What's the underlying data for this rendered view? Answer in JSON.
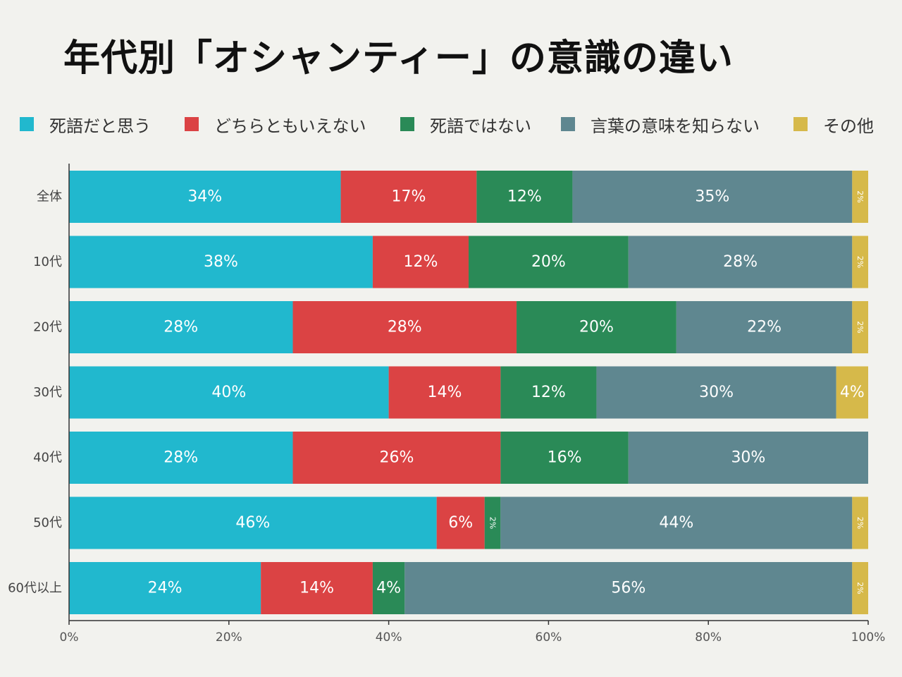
{
  "title": "年代別「オシャンティー」の意識の違い",
  "chart_data": {
    "type": "bar",
    "orientation": "horizontal",
    "stacked": true,
    "title": "年代別「オシャンティー」の意識の違い",
    "categories": [
      "全体",
      "10代",
      "20代",
      "30代",
      "40代",
      "50代",
      "60代以上"
    ],
    "series": [
      {
        "name": "死語だと思う",
        "color": "#21b8ce",
        "values": [
          34,
          38,
          28,
          40,
          28,
          46,
          24
        ]
      },
      {
        "name": "どちらともいえない",
        "color": "#db4344",
        "values": [
          17,
          12,
          28,
          14,
          26,
          6,
          14
        ]
      },
      {
        "name": "死語ではない",
        "color": "#2a8a57",
        "values": [
          12,
          20,
          20,
          12,
          16,
          2,
          4
        ]
      },
      {
        "name": "言葉の意味を知らない",
        "color": "#5f8790",
        "values": [
          35,
          28,
          22,
          30,
          30,
          44,
          56
        ]
      },
      {
        "name": "その他",
        "color": "#d6b94a",
        "values": [
          2,
          2,
          2,
          4,
          0,
          2,
          2
        ]
      }
    ],
    "xlim": [
      0,
      100
    ],
    "xticks": [
      "0%",
      "20%",
      "40%",
      "60%",
      "80%",
      "100%"
    ],
    "value_suffix": "%",
    "legend_position": "top",
    "grid": false
  }
}
